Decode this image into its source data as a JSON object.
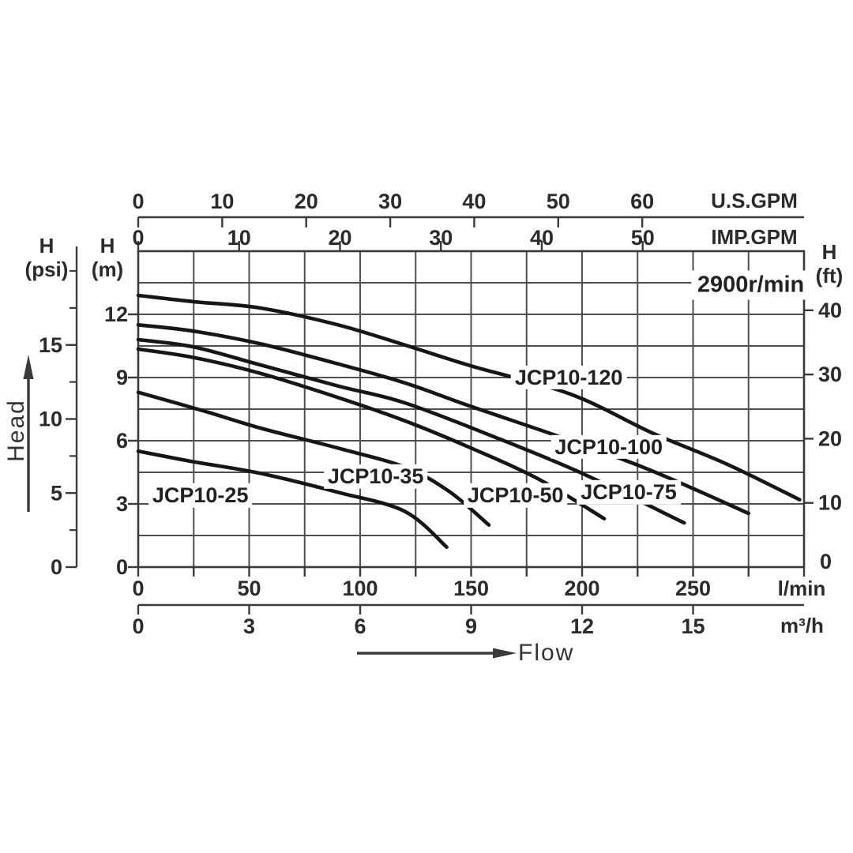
{
  "axis_headers": {
    "psi": {
      "line1": "H",
      "line2": "(psi)"
    },
    "m": {
      "line1": "H",
      "line2": "(m)"
    },
    "ft": {
      "line1": "H",
      "line2": "(ft)"
    }
  },
  "axis_units": {
    "us_gpm": "U.S.GPM",
    "imp_gpm": "IMP.GPM",
    "lmin": "l/min",
    "m3h": "m³/h"
  },
  "direction_labels": {
    "head": "Head",
    "flow": "Flow"
  },
  "colors": {
    "curve": "#161616",
    "grid": "#4f4f4f",
    "frame": "#3a3a3a",
    "text": "#2b2b2b"
  },
  "chart_data": {
    "type": "line",
    "speed_annotation": {
      "text": "2900r/min",
      "x_lmin": 276,
      "y_m": 13.4
    },
    "x_axes": [
      {
        "id": "us_gpm",
        "unit": "U.S.GPM",
        "ticks": [
          0,
          10,
          20,
          30,
          40,
          50,
          60
        ],
        "lmin_per_unit": 3.785
      },
      {
        "id": "imp_gpm",
        "unit": "IMP.GPM",
        "ticks": [
          0,
          10,
          20,
          30,
          40,
          50
        ],
        "lmin_per_unit": 4.546
      },
      {
        "id": "lmin",
        "unit": "l/min",
        "labeled_ticks": [
          0,
          50,
          100,
          150,
          200,
          250
        ],
        "minor_step": 25,
        "range": [
          0,
          300
        ]
      },
      {
        "id": "m3h",
        "unit": "m³/h",
        "ticks": [
          0,
          3,
          6,
          9,
          12,
          15
        ],
        "lmin_per_unit": 16.6667
      }
    ],
    "y_axes": [
      {
        "id": "m",
        "unit": "m",
        "ticks": [
          0,
          3,
          6,
          9,
          12
        ],
        "grid_step": 1.5,
        "range": [
          0,
          15
        ]
      },
      {
        "id": "psi",
        "unit": "psi",
        "labeled_ticks": [
          0,
          5,
          10,
          15
        ],
        "minor_ticks": [
          2.5,
          7.5,
          12.5,
          17.5,
          20
        ],
        "m_per_unit": 0.7031
      },
      {
        "id": "ft",
        "unit": "ft",
        "labeled_ticks": [
          10,
          20,
          30,
          40
        ],
        "zero_label": 0,
        "m_per_unit": 0.3048
      }
    ],
    "grid": true,
    "series": [
      {
        "name": "JCP10-25",
        "points": [
          [
            0,
            5.5
          ],
          [
            25,
            5.0
          ],
          [
            55,
            4.45
          ],
          [
            90,
            3.55
          ],
          [
            120,
            2.65
          ],
          [
            139,
            0.95
          ]
        ],
        "label_x_lmin": 28,
        "label_y_m": 3.4
      },
      {
        "name": "JCP10-35",
        "points": [
          [
            0,
            8.3
          ],
          [
            30,
            7.4
          ],
          [
            55,
            6.6
          ],
          [
            90,
            5.65
          ],
          [
            120,
            4.75
          ],
          [
            140,
            3.6
          ],
          [
            158,
            2.0
          ]
        ],
        "label_x_lmin": 107,
        "label_y_m": 4.3
      },
      {
        "name": "JCP10-50",
        "points": [
          [
            0,
            10.35
          ],
          [
            25,
            9.95
          ],
          [
            55,
            9.2
          ],
          [
            90,
            8.05
          ],
          [
            120,
            6.95
          ],
          [
            150,
            5.65
          ],
          [
            180,
            4.2
          ],
          [
            210,
            2.3
          ]
        ],
        "label_x_lmin": 170,
        "label_y_m": 3.4
      },
      {
        "name": "JCP10-75",
        "points": [
          [
            0,
            10.8
          ],
          [
            25,
            10.45
          ],
          [
            55,
            9.6
          ],
          [
            90,
            8.6
          ],
          [
            120,
            7.8
          ],
          [
            160,
            6.2
          ],
          [
            200,
            4.45
          ],
          [
            246,
            2.1
          ]
        ],
        "label_x_lmin": 221,
        "label_y_m": 3.55
      },
      {
        "name": "JCP10-100",
        "points": [
          [
            0,
            11.5
          ],
          [
            25,
            11.2
          ],
          [
            55,
            10.6
          ],
          [
            90,
            9.65
          ],
          [
            120,
            8.75
          ],
          [
            148,
            7.7
          ],
          [
            195,
            6.0
          ],
          [
            232,
            4.55
          ],
          [
            275,
            2.55
          ]
        ],
        "label_x_lmin": 212,
        "label_y_m": 5.7
      },
      {
        "name": "JCP10-120",
        "points": [
          [
            0,
            12.9
          ],
          [
            25,
            12.6
          ],
          [
            55,
            12.3
          ],
          [
            90,
            11.5
          ],
          [
            120,
            10.55
          ],
          [
            150,
            9.55
          ],
          [
            195,
            8.2
          ],
          [
            232,
            6.35
          ],
          [
            265,
            4.9
          ],
          [
            298,
            3.2
          ]
        ],
        "label_x_lmin": 194,
        "label_y_m": 9.0
      }
    ]
  }
}
